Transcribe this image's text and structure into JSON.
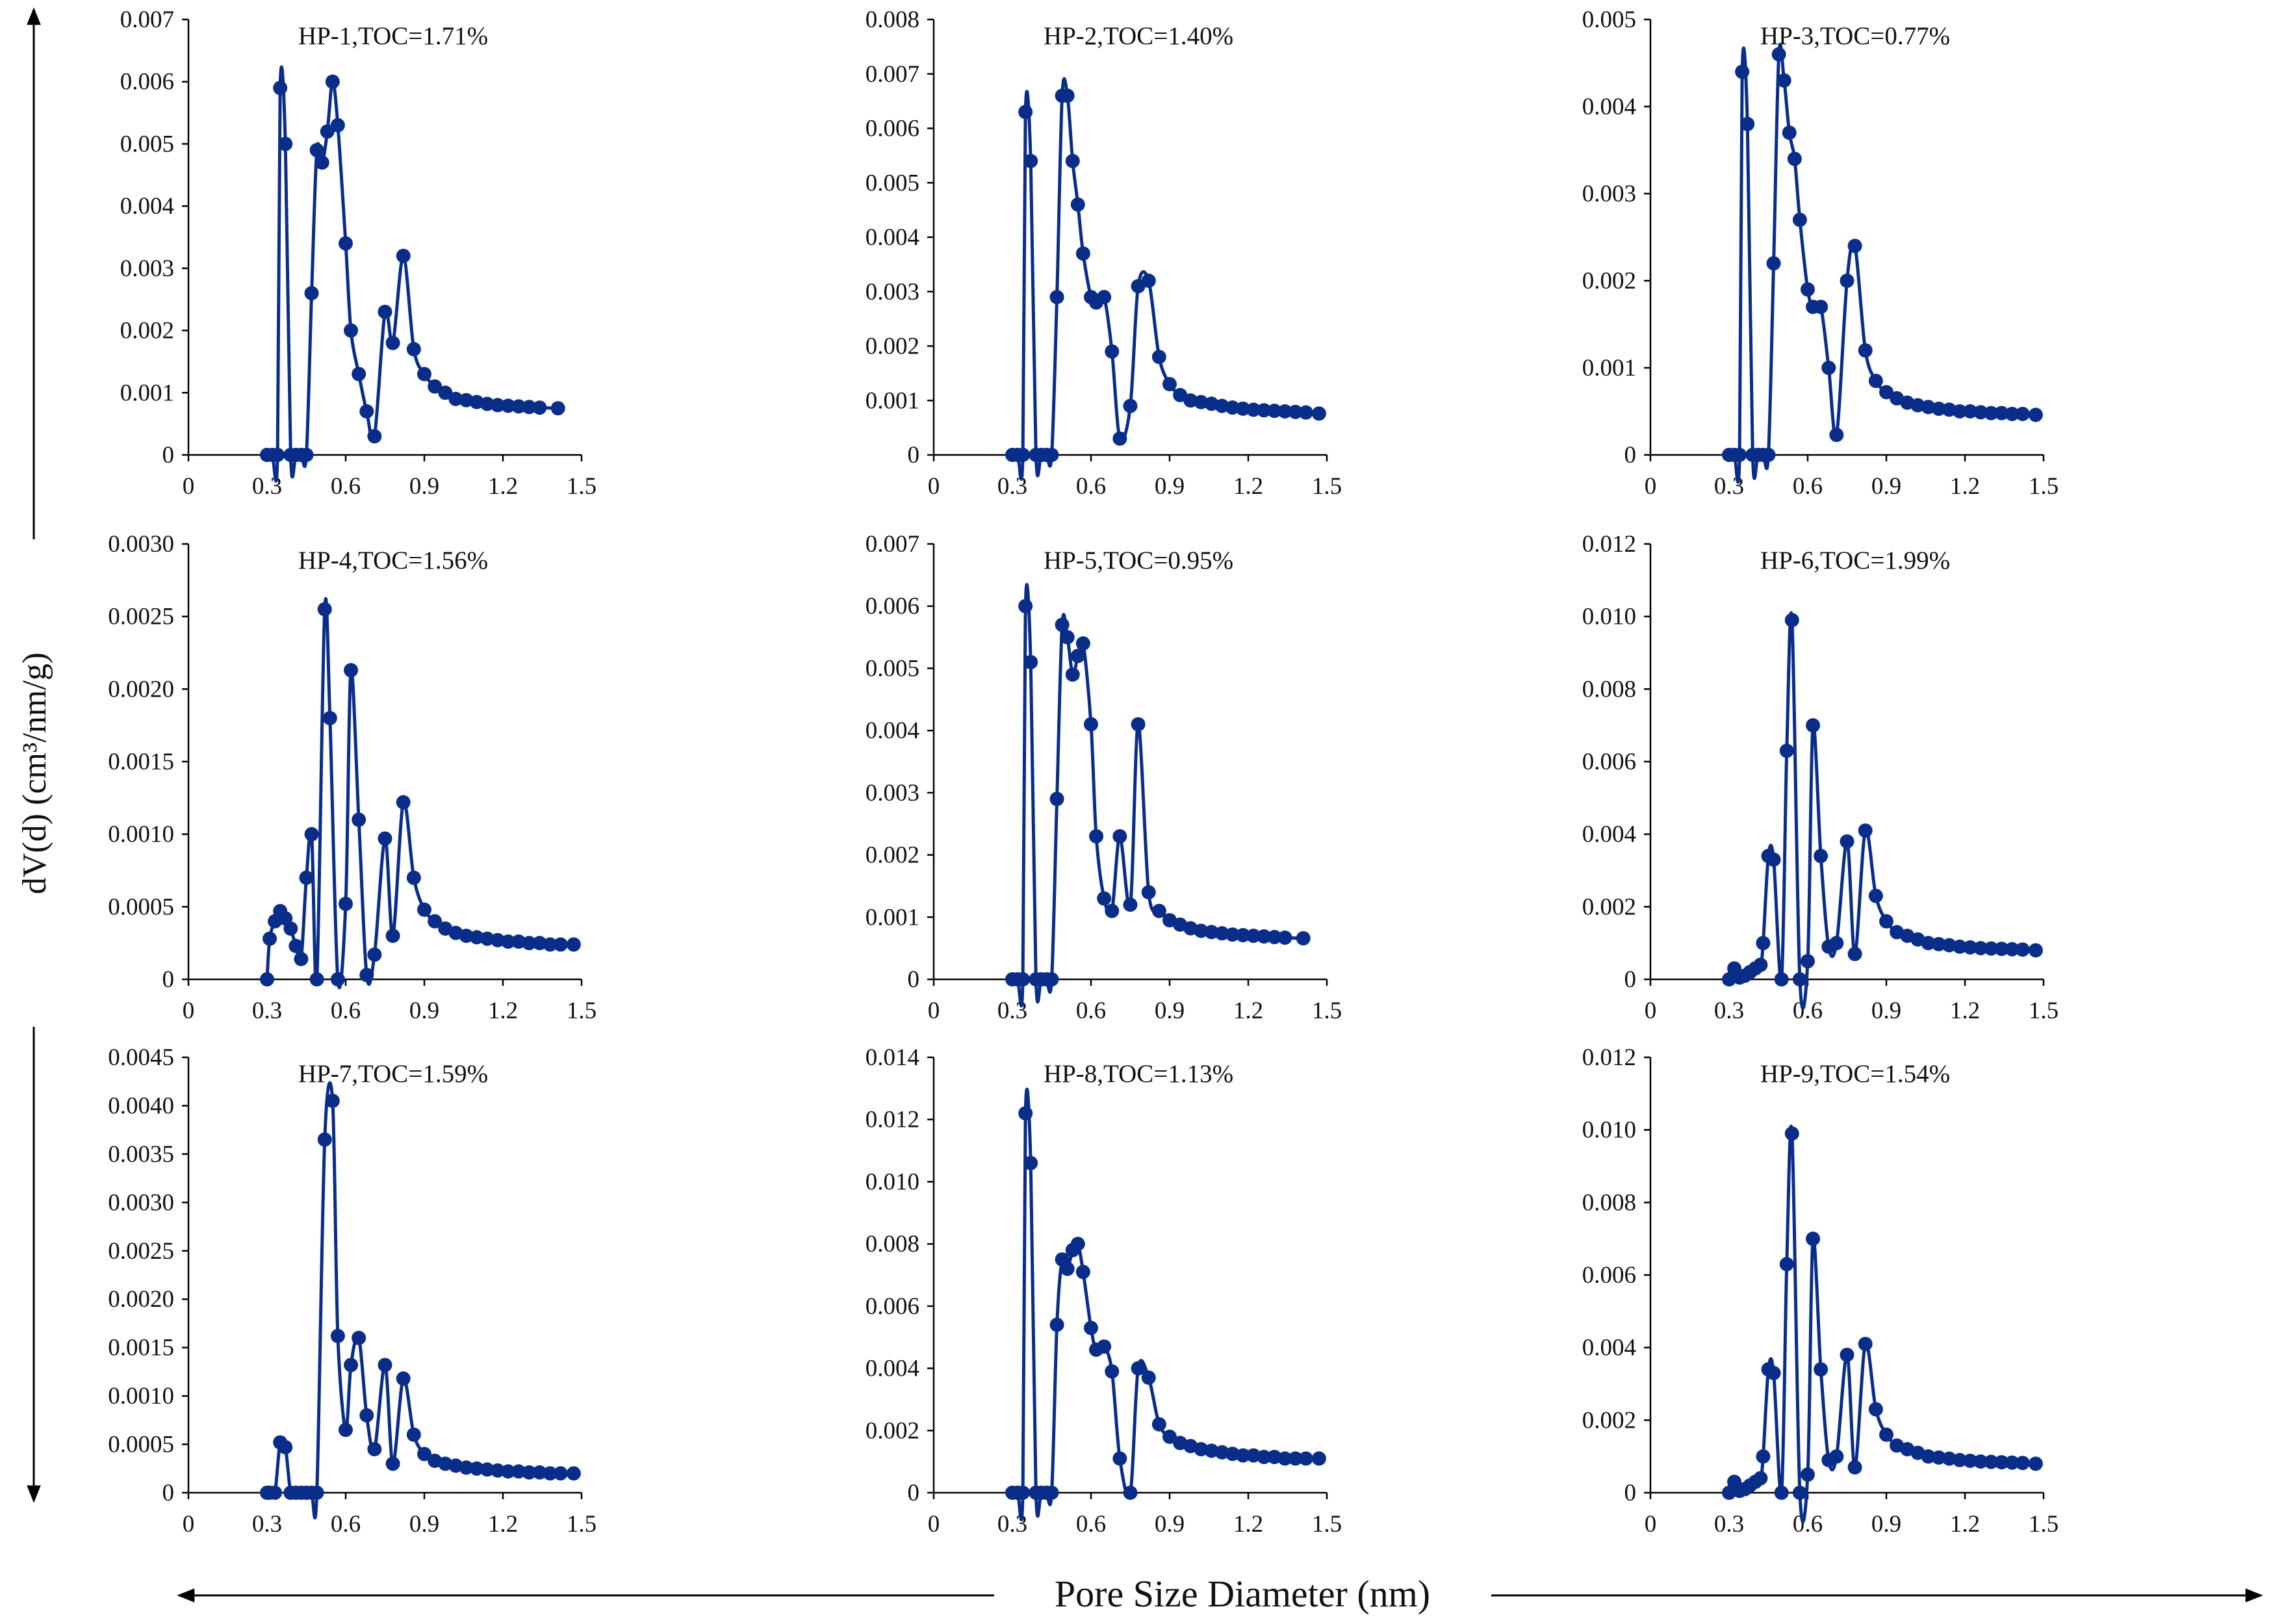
{
  "figure": {
    "ylabel": "dV(d) (cm³/nm/g)",
    "xlabel": "Pore Size Diameter (nm)"
  },
  "colors": {
    "series": "#0a2d8a",
    "axis": "#000000"
  },
  "chart_data": [
    {
      "type": "line",
      "title": "HP-1,TOC=1.71%",
      "xlim": [
        0,
        1.5
      ],
      "ylim": [
        0,
        0.007
      ],
      "xticks": [
        "0",
        "0.3",
        "0.6",
        "0.9",
        "1.2",
        "1.5"
      ],
      "yticks": [
        "0",
        "0.001",
        "0.002",
        "0.003",
        "0.004",
        "0.005",
        "0.006",
        "0.007"
      ],
      "x": [
        0.3,
        0.32,
        0.34,
        0.35,
        0.37,
        0.39,
        0.41,
        0.43,
        0.45,
        0.47,
        0.49,
        0.51,
        0.53,
        0.55,
        0.57,
        0.6,
        0.62,
        0.65,
        0.68,
        0.71,
        0.75,
        0.78,
        0.82,
        0.86,
        0.9,
        0.94,
        0.98,
        1.02,
        1.06,
        1.1,
        1.14,
        1.18,
        1.22,
        1.26,
        1.3,
        1.34,
        1.41
      ],
      "y": [
        0,
        0,
        0,
        0.0059,
        0.005,
        0,
        0,
        0,
        0,
        0.0026,
        0.0049,
        0.0047,
        0.0052,
        0.006,
        0.0053,
        0.0034,
        0.002,
        0.0013,
        0.0007,
        0.0003,
        0.0023,
        0.0018,
        0.0032,
        0.0017,
        0.0013,
        0.0011,
        0.001,
        0.0009,
        0.00088,
        0.00085,
        0.00082,
        0.0008,
        0.00079,
        0.00078,
        0.00077,
        0.00076,
        0.00075
      ]
    },
    {
      "type": "line",
      "title": "HP-2,TOC=1.40%",
      "xlim": [
        0,
        1.5
      ],
      "ylim": [
        0,
        0.008
      ],
      "xticks": [
        "0",
        "0.3",
        "0.6",
        "0.9",
        "1.2",
        "1.5"
      ],
      "yticks": [
        "0",
        "0.001",
        "0.002",
        "0.003",
        "0.004",
        "0.005",
        "0.006",
        "0.007",
        "0.008"
      ],
      "x": [
        0.3,
        0.32,
        0.34,
        0.35,
        0.37,
        0.39,
        0.41,
        0.43,
        0.45,
        0.47,
        0.49,
        0.51,
        0.53,
        0.55,
        0.57,
        0.6,
        0.62,
        0.65,
        0.68,
        0.71,
        0.75,
        0.78,
        0.82,
        0.86,
        0.9,
        0.94,
        0.98,
        1.02,
        1.06,
        1.1,
        1.14,
        1.18,
        1.22,
        1.26,
        1.3,
        1.34,
        1.38,
        1.42,
        1.47
      ],
      "y": [
        0,
        0,
        0,
        0.0063,
        0.0054,
        0,
        0,
        0,
        0,
        0.0029,
        0.0066,
        0.0066,
        0.0054,
        0.0046,
        0.0037,
        0.0029,
        0.0028,
        0.0029,
        0.0019,
        0.0003,
        0.0009,
        0.0031,
        0.0032,
        0.0018,
        0.0013,
        0.0011,
        0.001,
        0.00097,
        0.00094,
        0.0009,
        0.00087,
        0.00085,
        0.00083,
        0.00082,
        0.00081,
        0.0008,
        0.00079,
        0.00078,
        0.00076
      ]
    },
    {
      "type": "line",
      "title": "HP-3,TOC=0.77%",
      "xlim": [
        0,
        1.5
      ],
      "ylim": [
        0,
        0.005
      ],
      "xticks": [
        "0",
        "0.3",
        "0.6",
        "0.9",
        "1.2",
        "1.5"
      ],
      "yticks": [
        "0",
        "0.001",
        "0.002",
        "0.003",
        "0.004",
        "0.005"
      ],
      "x": [
        0.3,
        0.32,
        0.34,
        0.35,
        0.37,
        0.39,
        0.41,
        0.43,
        0.45,
        0.47,
        0.49,
        0.51,
        0.53,
        0.55,
        0.57,
        0.6,
        0.62,
        0.65,
        0.68,
        0.71,
        0.75,
        0.78,
        0.82,
        0.86,
        0.9,
        0.94,
        0.98,
        1.02,
        1.06,
        1.1,
        1.14,
        1.18,
        1.22,
        1.26,
        1.3,
        1.34,
        1.38,
        1.42,
        1.47
      ],
      "y": [
        0,
        0,
        0,
        0.0044,
        0.0038,
        0,
        0,
        0,
        0,
        0.0022,
        0.0046,
        0.0043,
        0.0037,
        0.0034,
        0.0027,
        0.0019,
        0.0017,
        0.0017,
        0.001,
        0.00023,
        0.002,
        0.0024,
        0.0012,
        0.00085,
        0.00072,
        0.00065,
        0.0006,
        0.00057,
        0.00055,
        0.00053,
        0.00052,
        0.0005,
        0.0005,
        0.00049,
        0.00048,
        0.00048,
        0.00047,
        0.00047,
        0.00046
      ]
    },
    {
      "type": "line",
      "title": "HP-4,TOC=1.56%",
      "xlim": [
        0,
        1.5
      ],
      "ylim": [
        0,
        0.003
      ],
      "xticks": [
        "0",
        "0.3",
        "0.6",
        "0.9",
        "1.2",
        "1.5"
      ],
      "yticks": [
        "0",
        "0.0005",
        "0.0010",
        "0.0015",
        "0.0020",
        "0.0025",
        "0.0030"
      ],
      "x": [
        0.3,
        0.31,
        0.33,
        0.35,
        0.37,
        0.39,
        0.41,
        0.43,
        0.45,
        0.47,
        0.49,
        0.52,
        0.54,
        0.57,
        0.6,
        0.62,
        0.65,
        0.68,
        0.71,
        0.75,
        0.78,
        0.82,
        0.86,
        0.9,
        0.94,
        0.98,
        1.02,
        1.06,
        1.1,
        1.14,
        1.18,
        1.22,
        1.26,
        1.3,
        1.34,
        1.38,
        1.42,
        1.47
      ],
      "y": [
        0,
        0.00028,
        0.0004,
        0.00047,
        0.00042,
        0.00035,
        0.00023,
        0.00014,
        0.0007,
        0.001,
        0,
        0.00255,
        0.0018,
        0,
        0.00052,
        0.00213,
        0.0011,
        3e-05,
        0.00017,
        0.00097,
        0.0003,
        0.00122,
        0.0007,
        0.00048,
        0.0004,
        0.00035,
        0.00032,
        0.0003,
        0.00029,
        0.00028,
        0.00027,
        0.00026,
        0.00026,
        0.00025,
        0.00025,
        0.00024,
        0.00024,
        0.00024
      ]
    },
    {
      "type": "line",
      "title": "HP-5,TOC=0.95%",
      "xlim": [
        0,
        1.5
      ],
      "ylim": [
        0,
        0.007
      ],
      "xticks": [
        "0",
        "0.3",
        "0.6",
        "0.9",
        "1.2",
        "1.5"
      ],
      "yticks": [
        "0",
        "0.001",
        "0.002",
        "0.003",
        "0.004",
        "0.005",
        "0.006",
        "0.007"
      ],
      "x": [
        0.3,
        0.32,
        0.34,
        0.35,
        0.37,
        0.39,
        0.41,
        0.43,
        0.45,
        0.47,
        0.49,
        0.51,
        0.53,
        0.55,
        0.57,
        0.6,
        0.62,
        0.65,
        0.68,
        0.71,
        0.75,
        0.78,
        0.82,
        0.86,
        0.9,
        0.94,
        0.98,
        1.02,
        1.06,
        1.1,
        1.14,
        1.18,
        1.22,
        1.26,
        1.3,
        1.34,
        1.41
      ],
      "y": [
        0,
        0,
        0,
        0.006,
        0.0051,
        0,
        0,
        0,
        0,
        0.0029,
        0.0057,
        0.0055,
        0.0049,
        0.0052,
        0.0054,
        0.0041,
        0.0023,
        0.0013,
        0.0011,
        0.0023,
        0.0012,
        0.0041,
        0.0014,
        0.0011,
        0.00095,
        0.00088,
        0.00082,
        0.00078,
        0.00076,
        0.00074,
        0.00072,
        0.00071,
        0.0007,
        0.00069,
        0.00068,
        0.00067,
        0.00066
      ]
    },
    {
      "type": "line",
      "title": "HP-6,TOC=1.99%",
      "xlim": [
        0,
        1.5
      ],
      "ylim": [
        0,
        0.012
      ],
      "xticks": [
        "0",
        "0.3",
        "0.6",
        "0.9",
        "1.2",
        "1.5"
      ],
      "yticks": [
        "0",
        "0.002",
        "0.004",
        "0.006",
        "0.008",
        "0.010",
        "0.012"
      ],
      "x": [
        0.3,
        0.32,
        0.34,
        0.36,
        0.38,
        0.4,
        0.42,
        0.43,
        0.45,
        0.47,
        0.5,
        0.52,
        0.54,
        0.57,
        0.6,
        0.62,
        0.65,
        0.68,
        0.71,
        0.75,
        0.78,
        0.82,
        0.86,
        0.9,
        0.94,
        0.98,
        1.02,
        1.06,
        1.1,
        1.14,
        1.18,
        1.22,
        1.26,
        1.3,
        1.34,
        1.38,
        1.42,
        1.47
      ],
      "y": [
        0,
        0.0003,
        5e-05,
        0.0001,
        0.0002,
        0.0003,
        0.0004,
        0.001,
        0.0034,
        0.0033,
        0,
        0.0063,
        0.0099,
        0,
        0.0005,
        0.007,
        0.0034,
        0.0009,
        0.001,
        0.0038,
        0.0007,
        0.0041,
        0.0023,
        0.0016,
        0.0013,
        0.0012,
        0.0011,
        0.001,
        0.00097,
        0.00094,
        0.0009,
        0.00088,
        0.00086,
        0.00085,
        0.00084,
        0.00083,
        0.00082,
        0.0008
      ]
    },
    {
      "type": "line",
      "title": "HP-7,TOC=1.59%",
      "xlim": [
        0,
        1.5
      ],
      "ylim": [
        0,
        0.0045
      ],
      "xticks": [
        "0",
        "0.3",
        "0.6",
        "0.9",
        "1.2",
        "1.5"
      ],
      "yticks": [
        "0",
        "0.0005",
        "0.0010",
        "0.0015",
        "0.0020",
        "0.0025",
        "0.0030",
        "0.0035",
        "0.0040",
        "0.0045"
      ],
      "x": [
        0.3,
        0.31,
        0.33,
        0.35,
        0.37,
        0.39,
        0.41,
        0.43,
        0.45,
        0.47,
        0.49,
        0.52,
        0.55,
        0.57,
        0.6,
        0.62,
        0.65,
        0.68,
        0.71,
        0.75,
        0.78,
        0.82,
        0.86,
        0.9,
        0.94,
        0.98,
        1.02,
        1.06,
        1.1,
        1.14,
        1.18,
        1.22,
        1.26,
        1.3,
        1.34,
        1.38,
        1.42,
        1.47
      ],
      "y": [
        0,
        0,
        0,
        0.00052,
        0.00047,
        0,
        0,
        0,
        0,
        0,
        0,
        0.00365,
        0.00405,
        0.00162,
        0.00065,
        0.00132,
        0.0016,
        0.0008,
        0.00045,
        0.00132,
        0.0003,
        0.00118,
        0.0006,
        0.0004,
        0.00033,
        0.0003,
        0.00028,
        0.00026,
        0.00025,
        0.00024,
        0.00023,
        0.00022,
        0.00022,
        0.00021,
        0.00021,
        0.0002,
        0.0002,
        0.0002
      ]
    },
    {
      "type": "line",
      "title": "HP-8,TOC=1.13%",
      "xlim": [
        0,
        1.5
      ],
      "ylim": [
        0,
        0.014
      ],
      "xticks": [
        "0",
        "0.3",
        "0.6",
        "0.9",
        "1.2",
        "1.5"
      ],
      "yticks": [
        "0",
        "0.002",
        "0.004",
        "0.006",
        "0.008",
        "0.010",
        "0.012",
        "0.014"
      ],
      "x": [
        0.3,
        0.32,
        0.34,
        0.35,
        0.37,
        0.39,
        0.41,
        0.43,
        0.45,
        0.47,
        0.49,
        0.51,
        0.53,
        0.55,
        0.57,
        0.6,
        0.62,
        0.65,
        0.68,
        0.71,
        0.75,
        0.78,
        0.82,
        0.86,
        0.9,
        0.94,
        0.98,
        1.02,
        1.06,
        1.1,
        1.14,
        1.18,
        1.22,
        1.26,
        1.3,
        1.34,
        1.38,
        1.42,
        1.47
      ],
      "y": [
        0,
        0,
        0,
        0.0122,
        0.0106,
        0,
        0,
        0,
        0,
        0.0054,
        0.0075,
        0.0072,
        0.0078,
        0.008,
        0.0071,
        0.0053,
        0.0046,
        0.0047,
        0.0039,
        0.0011,
        0,
        0.004,
        0.0037,
        0.0022,
        0.0018,
        0.0016,
        0.0015,
        0.0014,
        0.00135,
        0.0013,
        0.00125,
        0.0012,
        0.0012,
        0.00115,
        0.00115,
        0.0011,
        0.0011,
        0.0011,
        0.0011
      ]
    },
    {
      "type": "line",
      "title": "HP-9,TOC=1.54%",
      "xlim": [
        0,
        1.5
      ],
      "ylim": [
        0,
        0.012
      ],
      "xticks": [
        "0",
        "0.3",
        "0.6",
        "0.9",
        "1.2",
        "1.5"
      ],
      "yticks": [
        "0",
        "0.002",
        "0.004",
        "0.006",
        "0.008",
        "0.010",
        "0.012"
      ],
      "x": [
        0.3,
        0.32,
        0.34,
        0.36,
        0.38,
        0.4,
        0.42,
        0.43,
        0.45,
        0.47,
        0.5,
        0.52,
        0.54,
        0.57,
        0.6,
        0.62,
        0.65,
        0.68,
        0.71,
        0.75,
        0.78,
        0.82,
        0.86,
        0.9,
        0.94,
        0.98,
        1.02,
        1.06,
        1.1,
        1.14,
        1.18,
        1.22,
        1.26,
        1.3,
        1.34,
        1.38,
        1.42,
        1.47
      ],
      "y": [
        0,
        0.0003,
        5e-05,
        0.0001,
        0.0002,
        0.0003,
        0.0004,
        0.001,
        0.0034,
        0.0033,
        0,
        0.0063,
        0.0099,
        0,
        0.0005,
        0.007,
        0.0034,
        0.0009,
        0.001,
        0.0038,
        0.0007,
        0.0041,
        0.0023,
        0.0016,
        0.0013,
        0.0012,
        0.0011,
        0.001,
        0.00097,
        0.00094,
        0.0009,
        0.00088,
        0.00086,
        0.00085,
        0.00084,
        0.00083,
        0.00082,
        0.0008
      ]
    }
  ]
}
